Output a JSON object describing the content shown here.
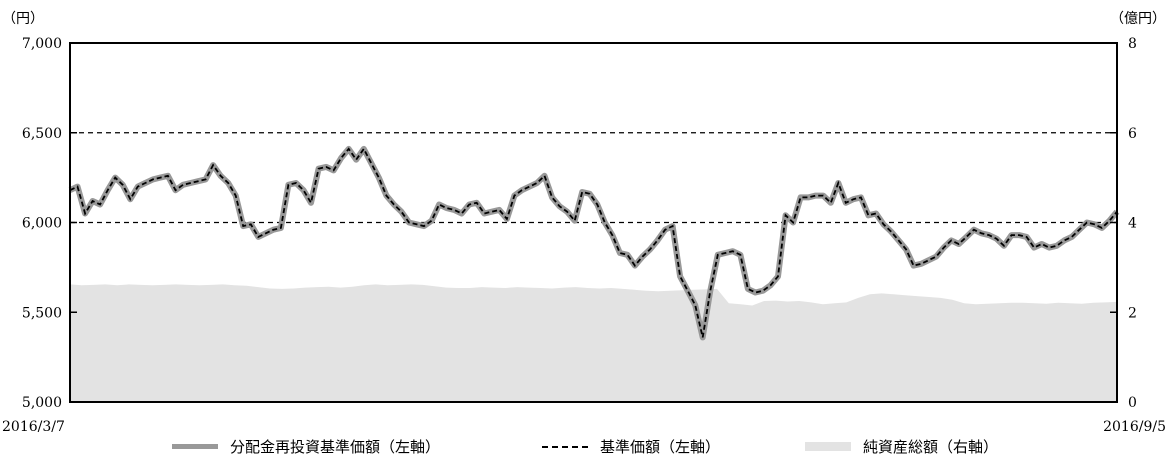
{
  "chart_data": {
    "type": "line",
    "left_unit": "（円）",
    "right_unit": "（億円）",
    "x_start_label": "2016/3/7",
    "x_end_label": "2016/9/5",
    "left_axis": {
      "min": 5000,
      "max": 7000,
      "ticks": [
        "5,000",
        "5,500",
        "6,000",
        "6,500",
        "7,000"
      ]
    },
    "right_axis": {
      "min": 0,
      "max": 8,
      "ticks": [
        "0",
        "2",
        "4",
        "6",
        "8"
      ]
    },
    "grid": "dashed at 6,000 and 6,500",
    "legend": [
      "分配金再投資基準価額（左軸）",
      "基準価額（左軸）",
      "純資産総額（右軸）"
    ],
    "series": [
      {
        "name": "分配金再投資基準価額（左軸）",
        "axis": "left",
        "values": [
          6180,
          6200,
          6050,
          6120,
          6100,
          6180,
          6250,
          6210,
          6130,
          6200,
          6220,
          6240,
          6250,
          6260,
          6180,
          6210,
          6220,
          6230,
          6240,
          6320,
          6260,
          6220,
          6150,
          5980,
          5990,
          5920,
          5940,
          5960,
          5970,
          6210,
          6220,
          6180,
          6110,
          6300,
          6310,
          6290,
          6360,
          6410,
          6350,
          6410,
          6330,
          6250,
          6150,
          6100,
          6060,
          6000,
          5990,
          5980,
          6010,
          6100,
          6080,
          6070,
          6050,
          6100,
          6110,
          6050,
          6060,
          6070,
          6020,
          6150,
          6180,
          6200,
          6220,
          6260,
          6140,
          6090,
          6060,
          6010,
          6170,
          6160,
          6100,
          6000,
          5930,
          5830,
          5820,
          5760,
          5810,
          5850,
          5900,
          5960,
          5980,
          5700,
          5620,
          5540,
          5360,
          5620,
          5820,
          5830,
          5840,
          5820,
          5630,
          5610,
          5620,
          5650,
          5700,
          6040,
          6000,
          6140,
          6140,
          6150,
          6150,
          6110,
          6220,
          6110,
          6130,
          6140,
          6040,
          6050,
          5990,
          5950,
          5900,
          5850,
          5760,
          5770,
          5790,
          5810,
          5860,
          5900,
          5880,
          5920,
          5960,
          5940,
          5930,
          5910,
          5870,
          5930,
          5930,
          5920,
          5860,
          5880,
          5860,
          5870,
          5900,
          5920,
          5960,
          6000,
          5990,
          5970,
          6010,
          6060
        ]
      },
      {
        "name": "基準価額（左軸）",
        "axis": "left",
        "same_as": "分配金再投資基準価額（左軸）"
      },
      {
        "name": "純資産総額（右軸）",
        "axis": "right",
        "values": [
          2.62,
          2.6,
          2.61,
          2.62,
          2.6,
          2.62,
          2.61,
          2.6,
          2.61,
          2.62,
          2.61,
          2.6,
          2.61,
          2.62,
          2.6,
          2.59,
          2.56,
          2.53,
          2.52,
          2.53,
          2.55,
          2.56,
          2.57,
          2.55,
          2.57,
          2.6,
          2.62,
          2.6,
          2.61,
          2.62,
          2.61,
          2.58,
          2.55,
          2.54,
          2.54,
          2.56,
          2.55,
          2.54,
          2.56,
          2.55,
          2.54,
          2.53,
          2.55,
          2.56,
          2.54,
          2.53,
          2.54,
          2.52,
          2.5,
          2.48,
          2.47,
          2.48,
          2.49,
          2.5,
          2.51,
          2.52,
          2.2,
          2.18,
          2.15,
          2.25,
          2.26,
          2.24,
          2.25,
          2.22,
          2.18,
          2.2,
          2.22,
          2.32,
          2.4,
          2.42,
          2.4,
          2.38,
          2.36,
          2.34,
          2.32,
          2.28,
          2.2,
          2.18,
          2.19,
          2.2,
          2.21,
          2.21,
          2.2,
          2.19,
          2.21,
          2.2,
          2.19,
          2.21,
          2.22,
          2.23
        ]
      }
    ]
  },
  "colors": {
    "nav_line": "#999999",
    "base_line": "#000000",
    "asset_area": "#e3e3e3"
  }
}
